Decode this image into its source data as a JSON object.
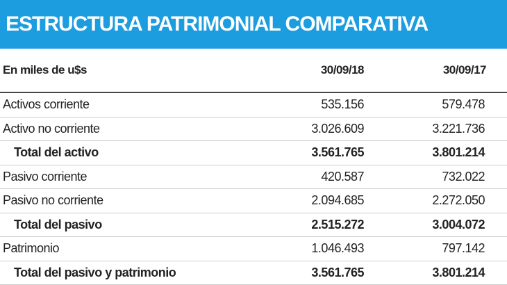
{
  "header": {
    "title": "ESTRUCTURA PATRIMONIAL COMPARATIVA"
  },
  "table": {
    "columns": [
      "En miles de u$s",
      "30/09/18",
      "30/09/17"
    ],
    "rows": [
      [
        "Activos corriente",
        "535.156",
        "579.478"
      ],
      [
        "Activo no corriente",
        "3.026.609",
        "3.221.736"
      ],
      [
        "Total del activo",
        "3.561.765",
        "3.801.214"
      ],
      [
        "Pasivo corriente",
        "420.587",
        "732.022"
      ],
      [
        "Pasivo no corriente",
        "2.094.685",
        "2.272.050"
      ],
      [
        "Total del pasivo",
        "2.515.272",
        "3.004.072"
      ],
      [
        "Patrimonio",
        "1.046.493",
        "797.142"
      ],
      [
        "Total del pasivo y patrimonio",
        "3.561.765",
        "3.801.214"
      ]
    ]
  }
}
